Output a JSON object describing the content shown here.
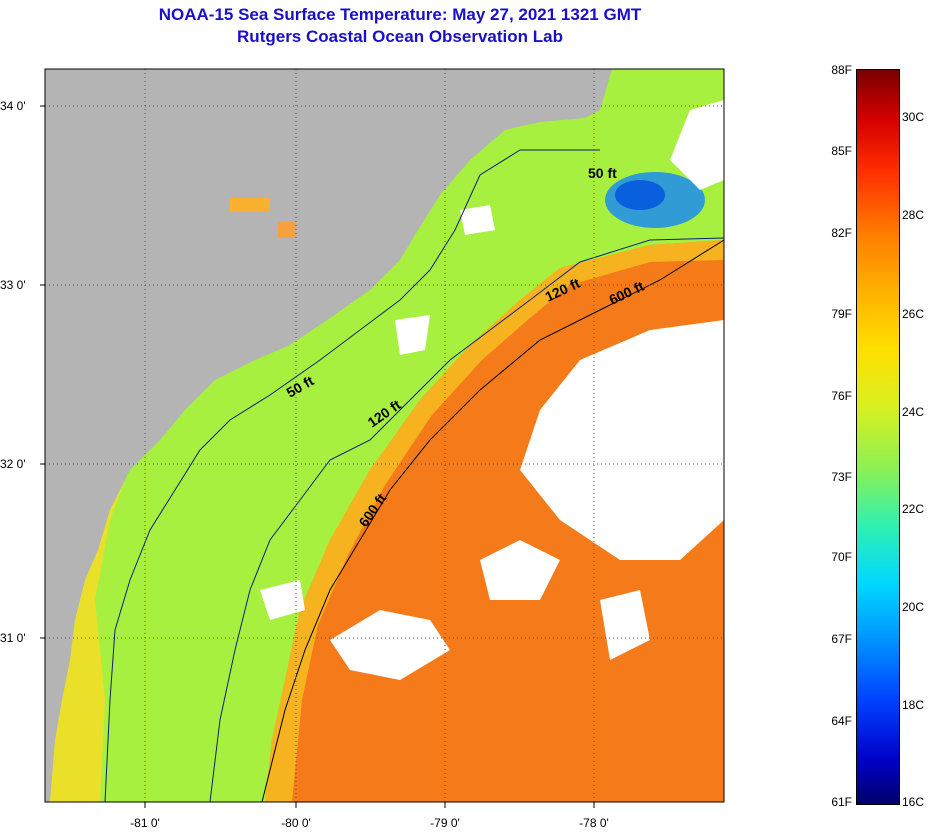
{
  "title": {
    "line1": "NOAA-15 Sea Surface Temperature:  May 27, 2021 1321 GMT",
    "line2": "Rutgers Coastal Ocean Observation Lab"
  },
  "axes": {
    "lat_labels": [
      "34 0'",
      "33 0'",
      "32 0'",
      "31 0'"
    ],
    "lon_labels": [
      "-81 0'",
      "-80 0'",
      "-79 0'",
      "-78 0'"
    ]
  },
  "isobaths": {
    "labels": [
      "50 ft",
      "50 ft",
      "120 ft",
      "120 ft",
      "600 ft",
      "600 ft"
    ]
  },
  "colorbar": {
    "fahrenheit": [
      "88F",
      "85F",
      "82F",
      "79F",
      "76F",
      "73F",
      "70F",
      "67F",
      "64F",
      "61F"
    ],
    "celsius": [
      "30C",
      "28C",
      "26C",
      "24C",
      "22C",
      "20C",
      "18C",
      "16C"
    ]
  },
  "colors": {
    "land": "#b4b4b4",
    "cloud": "#ffffff",
    "shelf_water": "#a8f040",
    "nearshore_water": "#f0e020",
    "gulf_stream": "#f47a1a",
    "cold_water": "#1c8cf0",
    "title": "#1a10c8"
  }
}
